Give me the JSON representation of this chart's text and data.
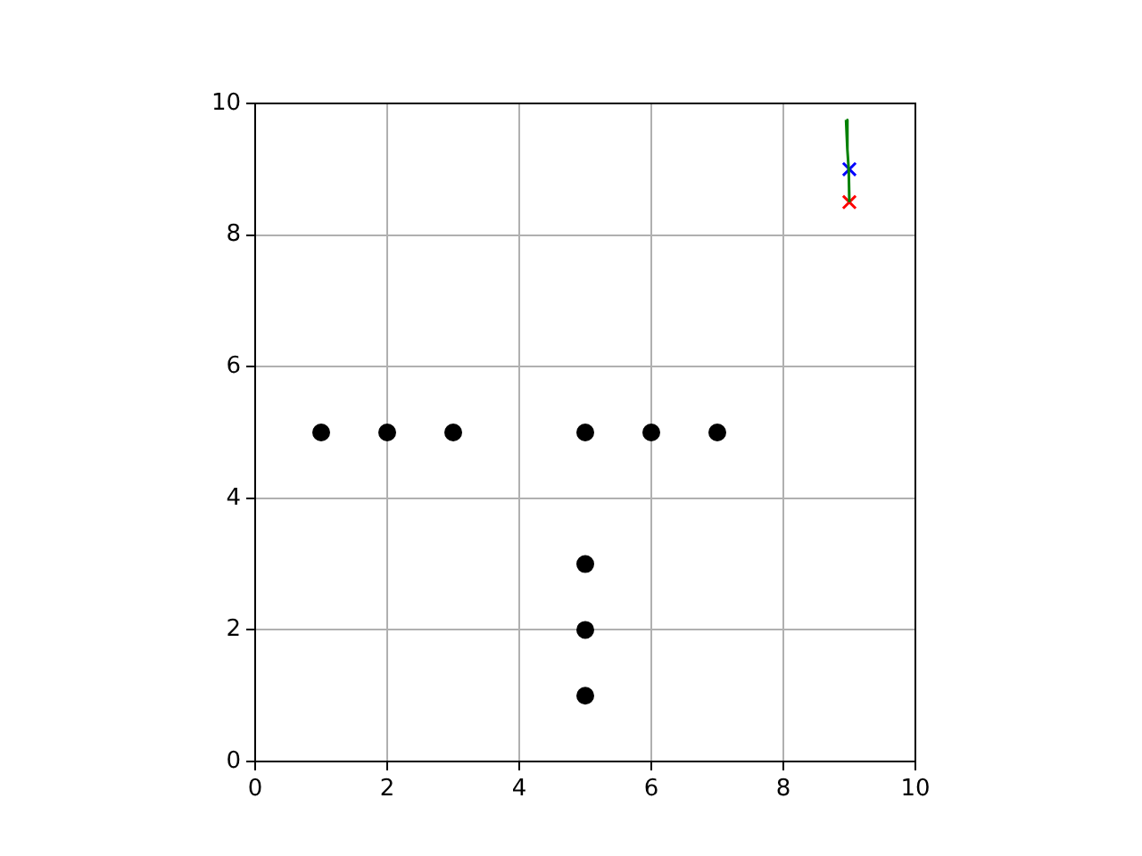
{
  "chart_data": {
    "type": "scatter",
    "xlim": [
      0,
      10
    ],
    "ylim": [
      0,
      10
    ],
    "xticks": [
      0,
      2,
      4,
      6,
      8,
      10
    ],
    "yticks": [
      0,
      2,
      4,
      6,
      8,
      10
    ],
    "grid": true,
    "legend": false,
    "series": [
      {
        "color": "#000000",
        "marker": "circle",
        "x": [
          1,
          2,
          3,
          5,
          6,
          7,
          5,
          5,
          5
        ],
        "values": [
          5,
          5,
          5,
          5,
          5,
          5,
          3,
          2,
          1
        ]
      },
      {
        "type": "line",
        "color": "#008000",
        "marker": "none",
        "x": [
          8.95,
          8.97,
          8.99,
          9.0
        ],
        "values": [
          9.75,
          9.3,
          9.0,
          8.5
        ]
      },
      {
        "type": "scatter",
        "color": "#0000ff",
        "marker": "cross",
        "x": [
          9.0
        ],
        "values": [
          9.0
        ]
      },
      {
        "type": "scatter",
        "color": "#ff0000",
        "marker": "cross",
        "x": [
          9.0
        ],
        "values": [
          8.5
        ]
      }
    ]
  }
}
